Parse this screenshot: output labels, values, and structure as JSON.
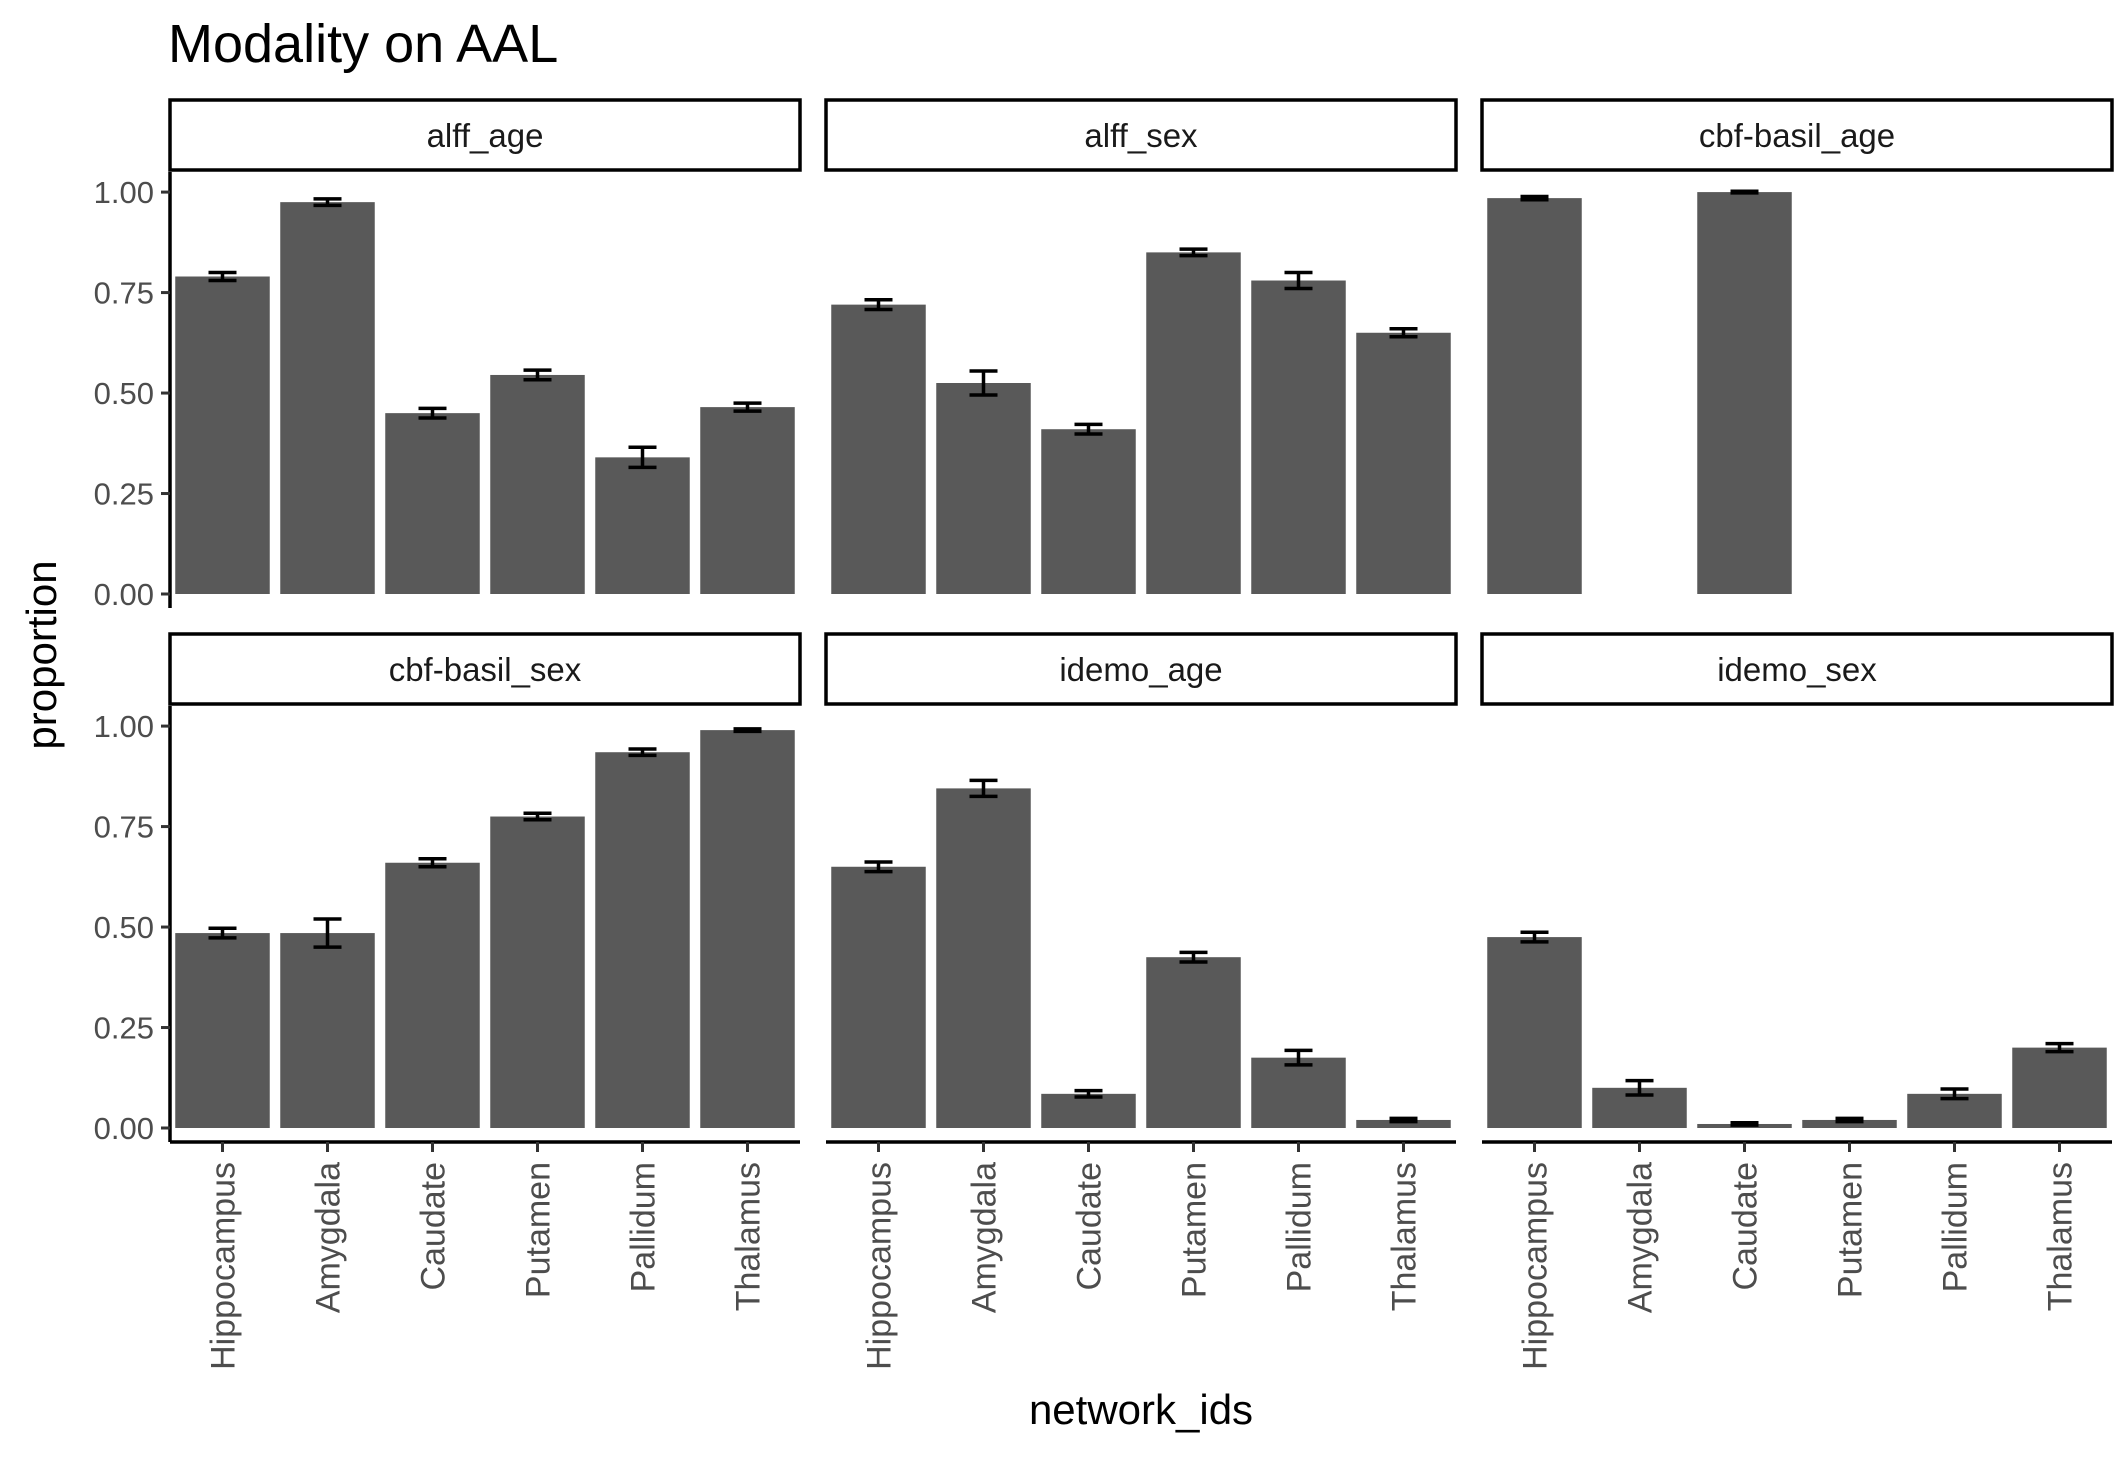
{
  "chart_data": {
    "type": "bar",
    "title": "Modality on AAL",
    "xlabel": "network_ids",
    "ylabel": "proportion",
    "ylim": [
      0,
      1.05
    ],
    "yticks": [
      "0.00",
      "0.25",
      "0.50",
      "0.75",
      "1.00"
    ],
    "ytick_values": [
      0,
      0.25,
      0.5,
      0.75,
      1.0
    ],
    "grid": false,
    "bar_color": "#595959",
    "categories": [
      "Hippocampus",
      "Amygdala",
      "Caudate",
      "Putamen",
      "Pallidum",
      "Thalamus"
    ],
    "panels": [
      {
        "name": "alff_age",
        "values": [
          0.79,
          0.975,
          0.45,
          0.545,
          0.34,
          0.465
        ],
        "errors": [
          0.01,
          0.008,
          0.012,
          0.012,
          0.025,
          0.01
        ]
      },
      {
        "name": "alff_sex",
        "values": [
          0.72,
          0.525,
          0.41,
          0.85,
          0.78,
          0.65
        ],
        "errors": [
          0.012,
          0.03,
          0.012,
          0.008,
          0.02,
          0.01
        ]
      },
      {
        "name": "cbf-basil_age",
        "values": [
          0.985,
          null,
          1.0,
          null,
          null,
          null
        ],
        "errors": [
          0.004,
          null,
          0.002,
          null,
          null,
          null
        ]
      },
      {
        "name": "cbf-basil_sex",
        "values": [
          0.485,
          0.485,
          0.66,
          0.775,
          0.935,
          0.99
        ],
        "errors": [
          0.012,
          0.035,
          0.01,
          0.008,
          0.008,
          0.003
        ]
      },
      {
        "name": "idemo_age",
        "values": [
          0.65,
          0.845,
          0.085,
          0.425,
          0.175,
          0.02
        ],
        "errors": [
          0.012,
          0.02,
          0.008,
          0.012,
          0.018,
          0.004
        ]
      },
      {
        "name": "idemo_sex",
        "values": [
          0.475,
          0.1,
          0.01,
          0.02,
          0.085,
          0.2
        ],
        "errors": [
          0.012,
          0.018,
          0.003,
          0.004,
          0.012,
          0.01
        ]
      }
    ]
  }
}
